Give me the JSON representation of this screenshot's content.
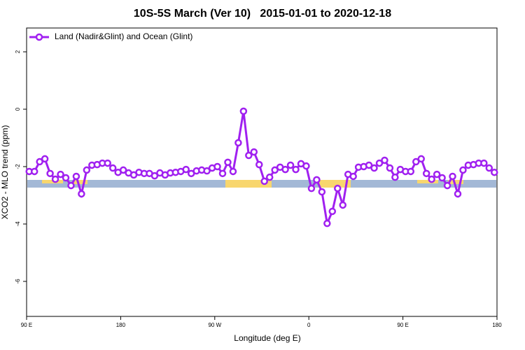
{
  "chart_data": {
    "type": "line",
    "title": "10S-5S March (Ver 10)   2015-01-01 to 2020-12-18",
    "x_label": "Longitude (deg E)",
    "y_label": "XCO2 - MLO trend (ppm)",
    "x": [
      92.5,
      97.5,
      102.5,
      107.5,
      112.5,
      117.5,
      122.5,
      127.5,
      132.5,
      137.5,
      142.5,
      147.5,
      152.5,
      157.5,
      162.5,
      167.5,
      172.5,
      177.5,
      182.5,
      187.5,
      192.5,
      197.5,
      202.5,
      207.5,
      212.5,
      217.5,
      222.5,
      227.5,
      232.5,
      237.5,
      242.5,
      247.5,
      252.5,
      257.5,
      262.5,
      267.5,
      272.5,
      277.5,
      282.5,
      287.5,
      292.5,
      297.5,
      302.5,
      307.5,
      312.5,
      317.5,
      322.5,
      327.5,
      332.5,
      337.5,
      342.5,
      347.5,
      352.5,
      357.5,
      362.5,
      367.5,
      372.5,
      377.5,
      382.5,
      387.5,
      392.5,
      397.5,
      402.5,
      407.5,
      412.5,
      417.5,
      422.5,
      427.5,
      432.5,
      437.5,
      442.5,
      447.5,
      452.5,
      457.5,
      462.5,
      467.5,
      472.5,
      477.5,
      482.5,
      487.5,
      492.5,
      497.5,
      502.5,
      507.5,
      512.5,
      517.5,
      522.5,
      527.5,
      532.5,
      537.5
    ],
    "series": [
      {
        "name": "Land (Nadir&Glint) and Ocean (Glint)",
        "color": "#a020f0",
        "values": [
          -2.17,
          -2.17,
          -1.83,
          -1.73,
          -2.24,
          -2.44,
          -2.27,
          -2.39,
          -2.66,
          -2.34,
          -2.95,
          -2.12,
          -1.95,
          -1.93,
          -1.88,
          -1.88,
          -2.05,
          -2.2,
          -2.12,
          -2.22,
          -2.29,
          -2.2,
          -2.24,
          -2.24,
          -2.32,
          -2.22,
          -2.29,
          -2.22,
          -2.2,
          -2.17,
          -2.1,
          -2.24,
          -2.15,
          -2.12,
          -2.15,
          -2.05,
          -2.0,
          -2.24,
          -1.85,
          -2.17,
          -1.17,
          -0.07,
          -1.61,
          -1.49,
          -1.93,
          -2.51,
          -2.37,
          -2.12,
          -2.02,
          -2.1,
          -1.95,
          -2.1,
          -1.9,
          -1.98,
          -2.76,
          -2.46,
          -2.88,
          -3.98,
          -3.56,
          -2.76,
          -3.34,
          -2.27,
          -2.34,
          -2.02,
          -2.0,
          -1.95,
          -2.05,
          -1.88,
          -1.78,
          -2.05,
          -2.37,
          -2.1,
          -2.17,
          -2.17,
          -1.83,
          -1.73,
          -2.24,
          -2.44,
          -2.27,
          -2.39,
          -2.66,
          -2.34,
          -2.95,
          -2.12,
          -1.95,
          -1.93,
          -1.88,
          -1.88,
          -2.05,
          -2.2
        ]
      }
    ],
    "xlim": [
      90,
      540
    ],
    "xticks": [
      {
        "value": 90,
        "label": "90 E"
      },
      180,
      {
        "value": 270,
        "label": "90 W"
      },
      {
        "value": 360,
        "label": "0"
      },
      {
        "value": 450,
        "label": "90 E"
      },
      {
        "value": 540,
        "label": "180"
      }
    ],
    "ylim": [
      -7.22,
      2.83
    ],
    "yticks": [
      2,
      0,
      -2,
      -4,
      -6
    ],
    "grid": false,
    "legend": "top-left"
  }
}
